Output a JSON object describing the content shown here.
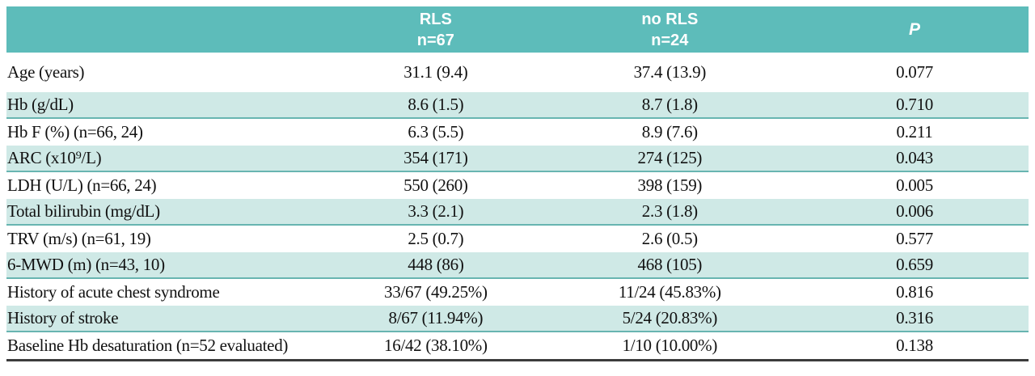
{
  "table": {
    "header": {
      "group_col": "",
      "rls": {
        "line1": "RLS",
        "line2": "n=67"
      },
      "no_rls": {
        "line1": "no RLS",
        "line2": "n=24"
      },
      "p": "P"
    },
    "rows": [
      {
        "label": "Age (years)",
        "rls": "31.1 (9.4)",
        "no_rls": "37.4 (13.9)",
        "p": "0.077"
      },
      {
        "label": "Hb (g/dL)",
        "rls": "8.6 (1.5)",
        "no_rls": "8.7 (1.8)",
        "p": "0.710"
      },
      {
        "label": "Hb F (%) (n=66, 24)",
        "rls": "6.3 (5.5)",
        "no_rls": "8.9 (7.6)",
        "p": "0.211"
      },
      {
        "label": "ARC (x10⁹/L)",
        "rls": "354 (171)",
        "no_rls": "274 (125)",
        "p": "0.043"
      },
      {
        "label": "LDH (U/L) (n=66, 24)",
        "rls": "550 (260)",
        "no_rls": "398 (159)",
        "p": "0.005"
      },
      {
        "label": "Total bilirubin (mg/dL)",
        "rls": "3.3 (2.1)",
        "no_rls": "2.3 (1.8)",
        "p": "0.006"
      },
      {
        "label": "TRV (m/s) (n=61, 19)",
        "rls": "2.5 (0.7)",
        "no_rls": "2.6 (0.5)",
        "p": "0.577"
      },
      {
        "label": "6-MWD (m) (n=43, 10)",
        "rls": "448 (86)",
        "no_rls": "468 (105)",
        "p": "0.659"
      },
      {
        "label": "History of acute chest syndrome",
        "rls": "33/67 (49.25%)",
        "no_rls": "11/24 (45.83%)",
        "p": "0.816"
      },
      {
        "label": "History of stroke",
        "rls": "8/67 (11.94%)",
        "no_rls": "5/24 (20.83%)",
        "p": "0.316"
      },
      {
        "label": "Baseline Hb desaturation (n=52 evaluated)",
        "rls": "16/42 (38.10%)",
        "no_rls": "1/10 (10.00%)",
        "p": "0.138"
      }
    ]
  },
  "colors": {
    "header_bg": "#5dbcba",
    "header_text": "#ffffff",
    "row_shade_bg": "#cfe9e6",
    "row_shade_rule": "#68b5b1",
    "table_bottom_rule": "#3c3c3c",
    "body_text": "#111111"
  }
}
